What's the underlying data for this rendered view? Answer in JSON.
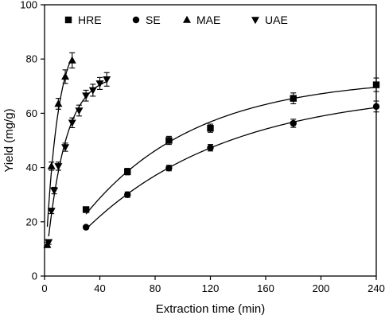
{
  "chart_data": {
    "type": "scatter",
    "title": "",
    "xlabel": "Extraction time (min)",
    "ylabel": "Yield (mg/g)",
    "xlim": [
      0,
      240
    ],
    "ylim": [
      0,
      100
    ],
    "xticks": [
      0,
      40,
      80,
      120,
      160,
      200,
      240
    ],
    "yticks": [
      0,
      20,
      40,
      60,
      80,
      100
    ],
    "grid": false,
    "legend": "top-left, horizontal",
    "fit_curves": true,
    "series": [
      {
        "name": "HRE",
        "marker": "square",
        "x": [
          30,
          60,
          90,
          120,
          180,
          240
        ],
        "y": [
          24.5,
          38.5,
          50.0,
          54.5,
          65.5,
          70.5
        ],
        "err": [
          0.8,
          1.2,
          1.5,
          1.5,
          2.0,
          2.5
        ]
      },
      {
        "name": "SE",
        "marker": "circle",
        "x": [
          30,
          60,
          90,
          120,
          180,
          240
        ],
        "y": [
          18.0,
          30.0,
          39.8,
          47.3,
          56.3,
          62.5
        ],
        "err": [
          0.6,
          1.0,
          1.0,
          1.2,
          1.5,
          2.0
        ]
      },
      {
        "name": "MAE",
        "marker": "triangle-up",
        "x": [
          2,
          5,
          10,
          15,
          20
        ],
        "y": [
          11.5,
          40.5,
          63.5,
          73.5,
          79.5
        ],
        "err": [
          1.0,
          1.5,
          2.0,
          2.5,
          2.8
        ]
      },
      {
        "name": "UAE",
        "marker": "triangle-down",
        "x": [
          3,
          5,
          7,
          10,
          15,
          20,
          25,
          30,
          35,
          40,
          45
        ],
        "y": [
          12.5,
          24.0,
          31.5,
          40.5,
          47.5,
          56.5,
          61.0,
          66.5,
          68.5,
          71.0,
          72.5
        ],
        "err": [
          0.8,
          1.0,
          1.2,
          1.5,
          1.5,
          1.8,
          2.0,
          2.0,
          2.2,
          2.2,
          2.5
        ]
      }
    ]
  }
}
